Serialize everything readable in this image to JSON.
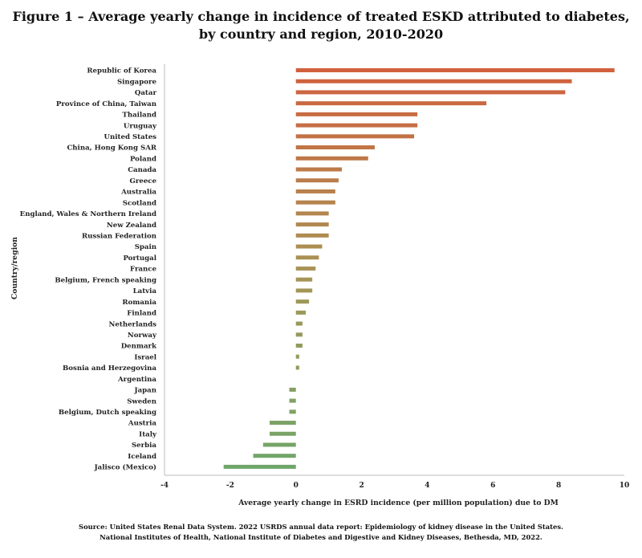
{
  "title_line1": "Figure 1 – Average yearly change in incidence of treated ESKD attributed to diabetes,",
  "title_line2": "by country and region, 2010-2020",
  "source_line1": "Source: United States Renal Data System. 2022 USRDS annual data report: Epidemiology of kidney disease in the United States.",
  "source_line2": "National Institutes of Health, National Institute of Diabetes and Digestive and Kidney Diseases, Bethesda, MD, 2022.",
  "chart_data": {
    "type": "bar",
    "orientation": "horizontal",
    "title": "Figure 1 – Average yearly change in incidence of treated ESKD attributed to diabetes, by country and region, 2010-2020",
    "xlabel": "Average yearly change in ESRD incidence (per million population) due to DM",
    "ylabel": "Country/region",
    "xlim": [
      -4,
      10
    ],
    "xticks": [
      "-4",
      "-2",
      "0",
      "2",
      "4",
      "6",
      "8",
      "10"
    ],
    "color_scale": {
      "high": "#d1603d",
      "mid": "#a89455",
      "low": "#6fa66a"
    },
    "categories": [
      "Republic of Korea",
      "Singapore",
      "Qatar",
      "Province of China, Taiwan",
      "Thailand",
      "Uruguay",
      "United States",
      "China, Hong Kong SAR",
      "Poland",
      "Canada",
      "Greece",
      "Australia",
      "Scotland",
      "England, Wales & Northern Ireland",
      "New Zealand",
      "Russian Federation",
      "Spain",
      "Portugal",
      "France",
      "Belgium, French speaking",
      "Latvia",
      "Romania",
      "Finland",
      "Netherlands",
      "Norway",
      "Denmark",
      "Israel",
      "Bosnia and Herzegovina",
      "Argentina",
      "Japan",
      "Sweden",
      "Belgium, Dutch speaking",
      "Austria",
      "Italy",
      "Serbia",
      "Iceland",
      "Jalisco (Mexico)"
    ],
    "values": [
      9.7,
      8.4,
      8.2,
      5.8,
      3.7,
      3.7,
      3.6,
      2.4,
      2.2,
      1.4,
      1.3,
      1.2,
      1.2,
      1.0,
      1.0,
      1.0,
      0.8,
      0.7,
      0.6,
      0.5,
      0.5,
      0.4,
      0.3,
      0.2,
      0.2,
      0.2,
      0.1,
      0.1,
      0.0,
      -0.2,
      -0.2,
      -0.2,
      -0.8,
      -0.8,
      -1.0,
      -1.3,
      -2.2
    ]
  }
}
